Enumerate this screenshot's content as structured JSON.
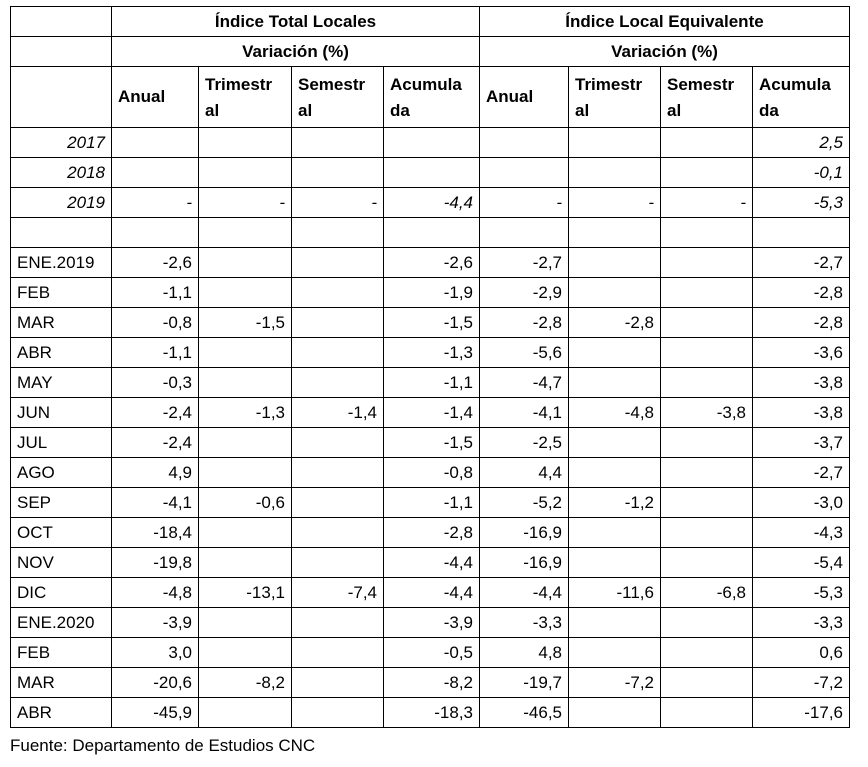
{
  "groups": [
    {
      "title": "Índice Total Locales",
      "subtitle": "Variación (%)"
    },
    {
      "title": "Índice Local Equivalente",
      "subtitle": "Variación (%)"
    }
  ],
  "col_headers": {
    "anual": "Anual",
    "trimestral": [
      "Trimestr",
      "al"
    ],
    "semestral": [
      "Semestr",
      "al"
    ],
    "acumulada": [
      "Acumula",
      "da"
    ],
    "acumulada_right": [
      "Acumula",
      "da"
    ]
  },
  "years": [
    {
      "label": "2017",
      "cells": [
        "",
        "",
        "",
        "",
        "",
        "",
        "",
        "2,5"
      ]
    },
    {
      "label": "2018",
      "cells": [
        "",
        "",
        "",
        "",
        "",
        "",
        "",
        "-0,1"
      ]
    },
    {
      "label": "2019",
      "cells": [
        "-",
        "-",
        "-",
        "-4,4",
        "-",
        "-",
        "-",
        "-5,3"
      ]
    }
  ],
  "months": [
    {
      "label": "ENE.2019",
      "cells": [
        "-2,6",
        "",
        "",
        "-2,6",
        "-2,7",
        "",
        "",
        "-2,7"
      ]
    },
    {
      "label": "FEB",
      "cells": [
        "-1,1",
        "",
        "",
        "-1,9",
        "-2,9",
        "",
        "",
        "-2,8"
      ]
    },
    {
      "label": "MAR",
      "cells": [
        "-0,8",
        "-1,5",
        "",
        "-1,5",
        "-2,8",
        "-2,8",
        "",
        "-2,8"
      ]
    },
    {
      "label": "ABR",
      "cells": [
        "-1,1",
        "",
        "",
        "-1,3",
        "-5,6",
        "",
        "",
        "-3,6"
      ]
    },
    {
      "label": "MAY",
      "cells": [
        "-0,3",
        "",
        "",
        "-1,1",
        "-4,7",
        "",
        "",
        "-3,8"
      ]
    },
    {
      "label": "JUN",
      "cells": [
        "-2,4",
        "-1,3",
        "-1,4",
        "-1,4",
        "-4,1",
        "-4,8",
        "-3,8",
        "-3,8"
      ]
    },
    {
      "label": "JUL",
      "cells": [
        "-2,4",
        "",
        "",
        "-1,5",
        "-2,5",
        "",
        "",
        "-3,7"
      ]
    },
    {
      "label": "AGO",
      "cells": [
        "4,9",
        "",
        "",
        "-0,8",
        "4,4",
        "",
        "",
        "-2,7"
      ]
    },
    {
      "label": "SEP",
      "cells": [
        "-4,1",
        "-0,6",
        "",
        "-1,1",
        "-5,2",
        "-1,2",
        "",
        "-3,0"
      ]
    },
    {
      "label": "OCT",
      "cells": [
        "-18,4",
        "",
        "",
        "-2,8",
        "-16,9",
        "",
        "",
        "-4,3"
      ]
    },
    {
      "label": "NOV",
      "cells": [
        "-19,8",
        "",
        "",
        "-4,4",
        "-16,9",
        "",
        "",
        "-5,4"
      ]
    },
    {
      "label": "DIC",
      "cells": [
        "-4,8",
        "-13,1",
        "-7,4",
        "-4,4",
        "-4,4",
        "-11,6",
        "-6,8",
        "-5,3"
      ]
    },
    {
      "label": "ENE.2020",
      "cells": [
        "-3,9",
        "",
        "",
        "-3,9",
        "-3,3",
        "",
        "",
        "-3,3"
      ]
    },
    {
      "label": "FEB",
      "cells": [
        "3,0",
        "",
        "",
        "-0,5",
        "4,8",
        "",
        "",
        "0,6"
      ]
    },
    {
      "label": "MAR",
      "cells": [
        "-20,6",
        "-8,2",
        "",
        "-8,2",
        "-19,7",
        "-7,2",
        "",
        "-7,2"
      ]
    },
    {
      "label": "ABR",
      "cells": [
        "-45,9",
        "",
        "",
        "-18,3",
        "-46,5",
        "",
        "",
        "-17,6"
      ]
    }
  ],
  "source": "Fuente: Departamento de Estudios CNC"
}
